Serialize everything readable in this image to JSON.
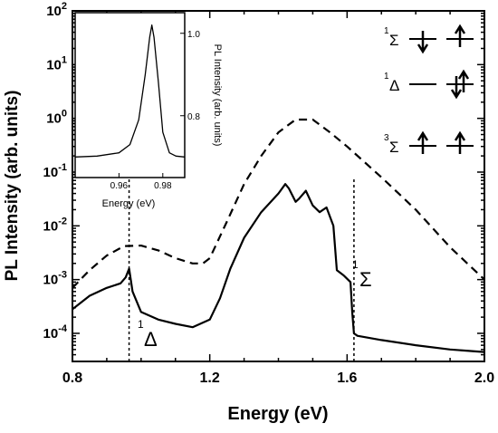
{
  "chart_data": [
    {
      "type": "line",
      "xlabel": "Energy (eV)",
      "ylabel": "PL Intensity (arb. units)",
      "xlim": [
        0.8,
        2.0
      ],
      "ylim": [
        3e-05,
        100
      ],
      "yscale": "log",
      "x_ticks": [
        0.8,
        1.2,
        1.6,
        2.0
      ],
      "x_tick_labels": [
        "0.8",
        "1.2",
        "1.6",
        "2.0"
      ],
      "y_ticks": [
        0.0001,
        0.001,
        0.01,
        0.1,
        1,
        10,
        100
      ],
      "y_tick_labels": [
        {
          "base": "10",
          "exp": "-4"
        },
        {
          "base": "10",
          "exp": "-3"
        },
        {
          "base": "10",
          "exp": "-2"
        },
        {
          "base": "10",
          "exp": "-1"
        },
        {
          "base": "10",
          "exp": "0"
        },
        {
          "base": "10",
          "exp": "1"
        },
        {
          "base": "10",
          "exp": "2"
        }
      ],
      "series": [
        {
          "style": "solid",
          "x": [
            0.8,
            0.85,
            0.9,
            0.94,
            0.955,
            0.965,
            0.975,
            1.0,
            1.05,
            1.1,
            1.15,
            1.2,
            1.23,
            1.26,
            1.3,
            1.35,
            1.4,
            1.42,
            1.43,
            1.45,
            1.46,
            1.48,
            1.5,
            1.52,
            1.54,
            1.56,
            1.57,
            1.59,
            1.61,
            1.615,
            1.62,
            1.63,
            1.7,
            1.8,
            1.9,
            2.0
          ],
          "y": [
            0.00028,
            0.0005,
            0.0007,
            0.00085,
            0.0011,
            0.0016,
            0.0006,
            0.00025,
            0.00018,
            0.00015,
            0.00013,
            0.00018,
            0.00045,
            0.0016,
            0.006,
            0.018,
            0.04,
            0.06,
            0.05,
            0.028,
            0.032,
            0.045,
            0.024,
            0.018,
            0.022,
            0.01,
            0.0015,
            0.0012,
            0.0009,
            0.00025,
            0.0001,
            9e-05,
            7.5e-05,
            6e-05,
            5e-05,
            4.5e-05
          ]
        },
        {
          "style": "dashed",
          "x": [
            0.8,
            0.85,
            0.9,
            0.95,
            1.0,
            1.05,
            1.1,
            1.15,
            1.18,
            1.2,
            1.25,
            1.3,
            1.35,
            1.4,
            1.45,
            1.5,
            1.55,
            1.6,
            1.7,
            1.8,
            1.9,
            2.0
          ],
          "y": [
            0.0007,
            0.0015,
            0.0028,
            0.0042,
            0.0043,
            0.0035,
            0.0025,
            0.002,
            0.002,
            0.0025,
            0.012,
            0.06,
            0.2,
            0.55,
            0.95,
            0.95,
            0.55,
            0.3,
            0.08,
            0.02,
            0.004,
            0.001
          ]
        }
      ],
      "vlines": [
        0.965,
        1.62
      ],
      "annotations": [
        {
          "sup": "1",
          "text": "Δ"
        },
        {
          "sup": "1",
          "text": "Σ"
        }
      ],
      "state_diagram": [
        {
          "sup": "1",
          "label": "Σ",
          "orbital_1": "down",
          "orbital_2": "up"
        },
        {
          "sup": "1",
          "label": "Δ",
          "orbital_1": "empty",
          "orbital_2": "up-down"
        },
        {
          "sup": "3",
          "label": "Σ",
          "orbital_1": "up",
          "orbital_2": "up"
        }
      ]
    },
    {
      "type": "line",
      "xlabel": "Energy (eV)",
      "ylabel": "PL Intensity (arb. units)",
      "xlim": [
        0.94,
        0.99
      ],
      "ylim": [
        0.65,
        1.05
      ],
      "x_tick_labels": [
        "0.96",
        "0.98"
      ],
      "x_ticks": [
        0.96,
        0.98
      ],
      "y_tick_labels": [
        "0.8",
        "1.0"
      ],
      "y_ticks": [
        0.8,
        1.0
      ],
      "series": [
        {
          "style": "solid",
          "x": [
            0.94,
            0.95,
            0.96,
            0.965,
            0.969,
            0.972,
            0.974,
            0.975,
            0.976,
            0.978,
            0.98,
            0.983,
            0.986,
            0.99
          ],
          "y": [
            0.7,
            0.702,
            0.71,
            0.73,
            0.79,
            0.9,
            0.99,
            1.02,
            0.99,
            0.88,
            0.76,
            0.71,
            0.702,
            0.7
          ]
        }
      ]
    }
  ]
}
